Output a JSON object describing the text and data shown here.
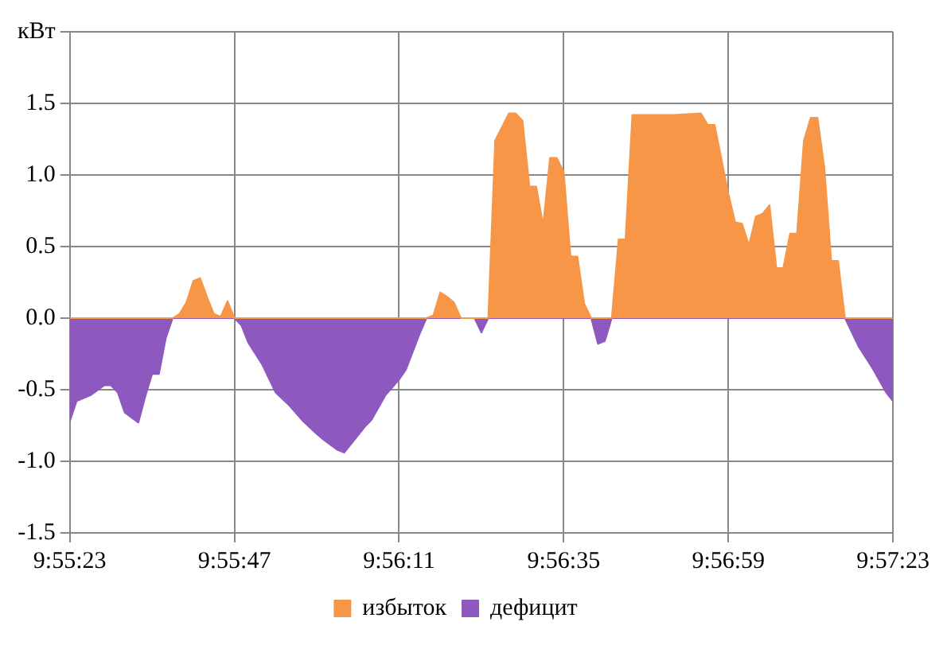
{
  "chart_data": {
    "type": "area",
    "x": [
      9.923056,
      9.923333,
      9.923889,
      9.924444,
      9.924722,
      9.925,
      9.925278,
      9.925833,
      9.926111,
      9.926389,
      9.926667,
      9.926944,
      9.927222,
      9.9275,
      9.927778,
      9.928056,
      9.928333,
      9.928611,
      9.928889,
      9.929167,
      9.929444,
      9.929722,
      9.93,
      9.930278,
      9.930833,
      9.931389,
      9.931944,
      9.9325,
      9.933056,
      9.933333,
      9.933889,
      9.934167,
      9.934444,
      9.935,
      9.935278,
      9.935833,
      9.936389,
      9.936667,
      9.937222,
      9.9375,
      9.937778,
      9.938056,
      9.938333,
      9.938611,
      9.938889,
      9.939444,
      9.939722,
      9.94,
      9.940278,
      9.940833,
      9.941111,
      9.941389,
      9.941667,
      9.941944,
      9.942222,
      9.9425,
      9.942778,
      9.943056,
      9.943333,
      9.943611,
      9.943889,
      9.944167,
      9.944444,
      9.944722,
      9.945,
      9.945278,
      9.945556,
      9.945833,
      9.9475,
      9.948611,
      9.948889,
      9.949167,
      9.949722,
      9.95,
      9.950278,
      9.950556,
      9.950833,
      9.951111,
      9.951389,
      9.951667,
      9.951944,
      9.952222,
      9.9525,
      9.952778,
      9.953056,
      9.953333,
      9.953611,
      9.953889,
      9.954167,
      9.954444,
      9.955,
      9.955556,
      9.956111,
      9.956389
    ],
    "series": [
      {
        "name": "избыток",
        "color": "#f79646",
        "values": [
          0,
          0,
          0,
          0,
          0,
          0,
          0,
          0,
          0,
          0,
          0,
          0,
          0,
          0.03,
          0.11,
          0.26,
          0.28,
          0.15,
          0.03,
          0.01,
          0.12,
          0,
          0,
          0,
          0,
          0,
          0,
          0,
          0,
          0,
          0,
          0,
          0,
          0,
          0,
          0,
          0,
          0,
          0,
          0,
          0.02,
          0.18,
          0.15,
          0.11,
          0,
          0,
          0,
          0,
          1.24,
          1.43,
          1.43,
          1.38,
          0.92,
          0.92,
          0.65,
          1.12,
          1.12,
          1.02,
          0.43,
          0.43,
          0.1,
          0,
          0,
          0,
          0,
          0.55,
          0.55,
          1.42,
          1.42,
          1.43,
          1.35,
          1.35,
          0.87,
          0.67,
          0.66,
          0.51,
          0.71,
          0.73,
          0.79,
          0.35,
          0.35,
          0.59,
          0.59,
          1.24,
          1.4,
          1.4,
          1.05,
          0.4,
          0.4,
          0,
          0,
          0,
          0,
          0
        ]
      },
      {
        "name": "дефицит",
        "color": "#8e59bf",
        "values": [
          -0.72,
          -0.58,
          -0.54,
          -0.47,
          -0.47,
          -0.52,
          -0.66,
          -0.73,
          -0.55,
          -0.39,
          -0.39,
          -0.14,
          0,
          0,
          0,
          0,
          0,
          0,
          0,
          0,
          0,
          0,
          -0.05,
          -0.17,
          -0.32,
          -0.52,
          -0.61,
          -0.72,
          -0.81,
          -0.85,
          -0.92,
          -0.94,
          -0.88,
          -0.76,
          -0.71,
          -0.54,
          -0.43,
          -0.36,
          -0.11,
          0,
          0,
          0,
          0,
          0,
          0,
          0,
          -0.1,
          0,
          0,
          0,
          0,
          0,
          0,
          0,
          0,
          0,
          0,
          0,
          0,
          0,
          0,
          0,
          -0.18,
          -0.16,
          0,
          0,
          0,
          0,
          0,
          0,
          0,
          0,
          0,
          0,
          0,
          0,
          0,
          0,
          0,
          0,
          0,
          0,
          0,
          0,
          0,
          0,
          0,
          0,
          0,
          0,
          -0.2,
          -0.35,
          -0.52,
          -0.58
        ]
      }
    ],
    "xlim": [
      9.923056,
      9.956389
    ],
    "xticks": [
      {
        "value": 9.923056,
        "label": "9:55:23"
      },
      {
        "value": 9.929722,
        "label": "9:55:47"
      },
      {
        "value": 9.936389,
        "label": "9:56:11"
      },
      {
        "value": 9.943056,
        "label": "9:56:35"
      },
      {
        "value": 9.949722,
        "label": "9:56:59"
      },
      {
        "value": 9.956389,
        "label": "9:57:23"
      }
    ],
    "ylim": [
      -1.5,
      2
    ],
    "yticks": [
      {
        "value": -1.5,
        "label": "-1.5"
      },
      {
        "value": -1,
        "label": "-1.0"
      },
      {
        "value": -0.5,
        "label": "-0.5"
      },
      {
        "value": 0,
        "label": "0.0"
      },
      {
        "value": 0.5,
        "label": "0.5"
      },
      {
        "value": 1,
        "label": "1.0"
      },
      {
        "value": 1.5,
        "label": "1.5"
      },
      {
        "value": 2,
        "label": "кВт"
      }
    ],
    "grid": true,
    "legend": "bottom"
  }
}
